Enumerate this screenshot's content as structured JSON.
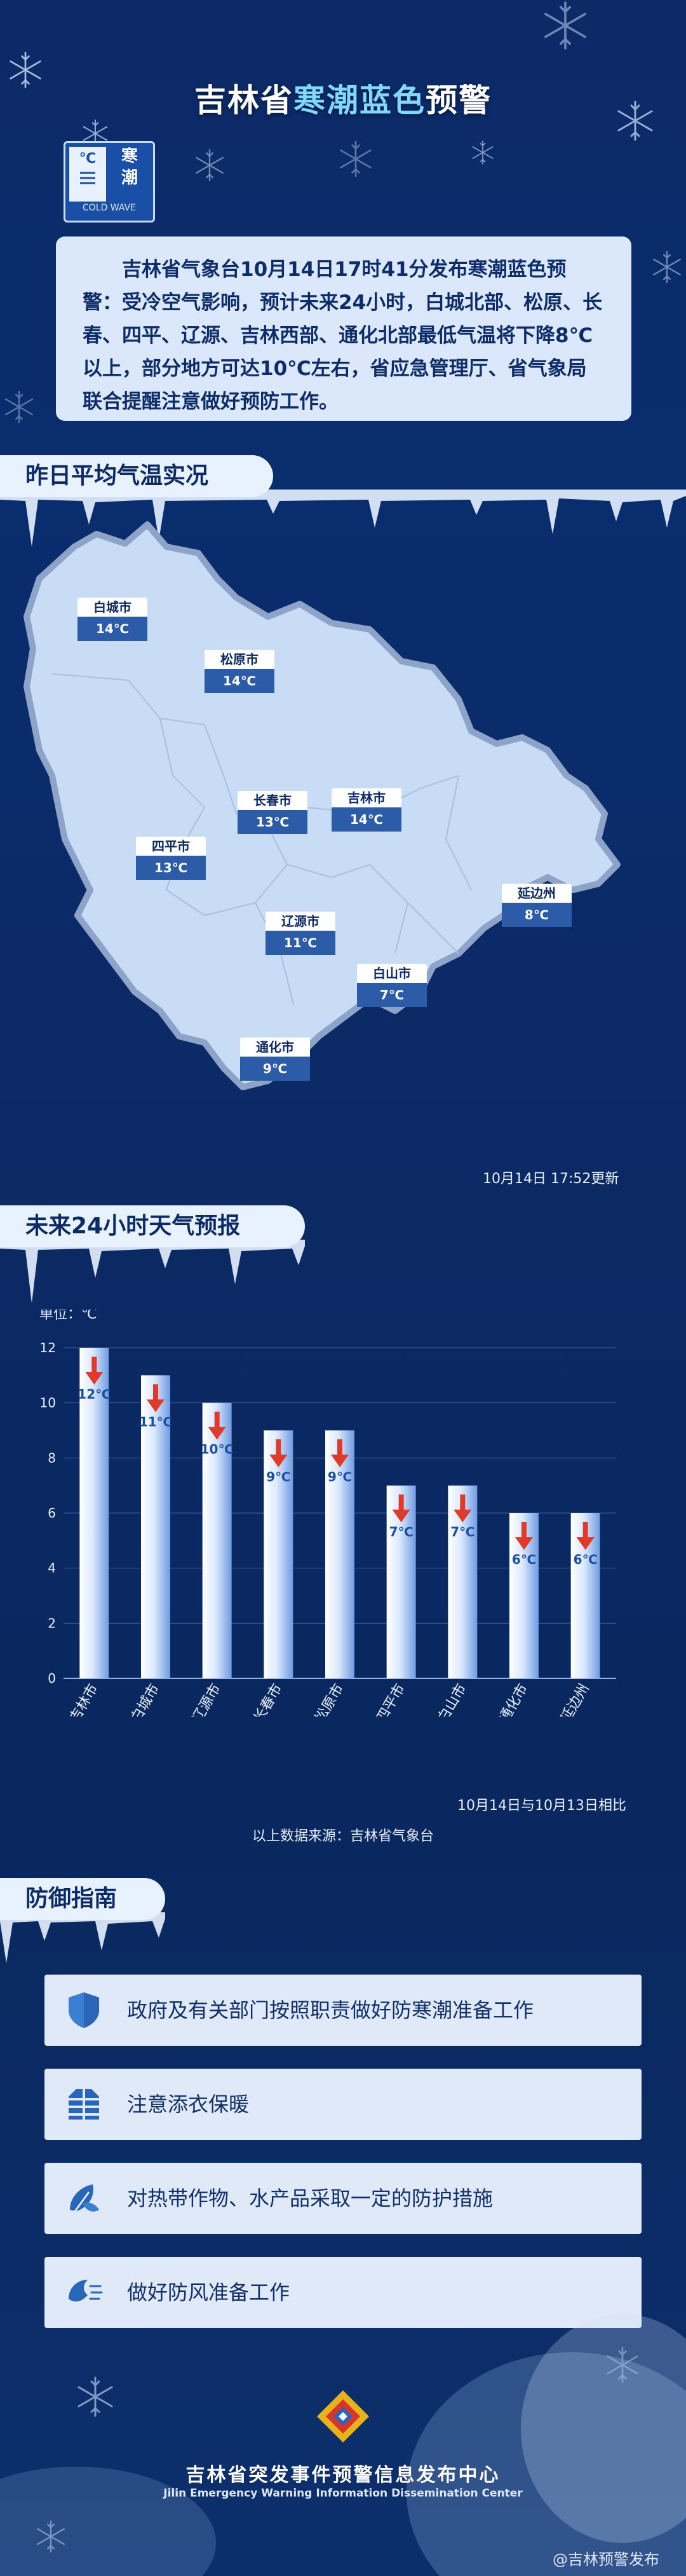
{
  "header": {
    "title_pre": "吉林省",
    "title_hl": "寒潮蓝色",
    "title_post": "预警"
  },
  "badge": {
    "symbol": "℃",
    "cn": "寒潮",
    "en": "COLD WAVE"
  },
  "notice": "吉林省气象台10月14日17时41分发布寒潮蓝色预警：受冷空气影响，预计未来24小时，白城北部、松原、长春、四平、辽源、吉林西部、通化北部最低气温将下降8℃以上，部分地方可达10℃左右，省应急管理厅、省气象局联合提醒注意做好预防工作。",
  "section_map": "昨日平均气温实况",
  "cities": [
    {
      "name": "白城市",
      "temp": "14℃"
    },
    {
      "name": "松原市",
      "temp": "14℃"
    },
    {
      "name": "长春市",
      "temp": "13℃"
    },
    {
      "name": "吉林市",
      "temp": "14℃"
    },
    {
      "name": "四平市",
      "temp": "13℃"
    },
    {
      "name": "延边州",
      "temp": "8℃"
    },
    {
      "name": "辽源市",
      "temp": "11℃"
    },
    {
      "name": "白山市",
      "temp": "7℃"
    },
    {
      "name": "通化市",
      "temp": "9℃"
    }
  ],
  "update_time": "10月14日  17:52更新",
  "section_chart": "未来24小时天气预报",
  "chart_data": {
    "type": "bar",
    "ylabel": "单位：℃",
    "ylim": [
      0,
      12
    ],
    "yticks": [
      "0",
      "2",
      "4",
      "6",
      "8",
      "10",
      "12"
    ],
    "categories": [
      "吉林市",
      "白城市",
      "辽源市",
      "长春市",
      "松原市",
      "四平市",
      "白山市",
      "通化市",
      "延边州"
    ],
    "values": [
      12,
      11,
      10,
      9,
      9,
      7,
      7,
      6,
      6
    ],
    "labels": [
      "12℃",
      "11℃",
      "10℃",
      "9℃",
      "9℃",
      "7℃",
      "7℃",
      "6℃",
      "6℃"
    ],
    "grid": true,
    "legend": "none"
  },
  "compare_note": "10月14日与10月13日相比",
  "source_note": "以上数据来源：吉林省气象台",
  "section_guide": "防御指南",
  "guides": [
    {
      "text": "政府及有关部门按照职责做好防寒潮准备工作",
      "icon": "shield-icon"
    },
    {
      "text": "注意添衣保暖",
      "icon": "coat-icon"
    },
    {
      "text": "对热带作物、水产品采取一定的防护措施",
      "icon": "plant-protection-icon"
    },
    {
      "text": "做好防风准备工作",
      "icon": "wind-icon"
    }
  ],
  "footer": {
    "name": "吉林省突发事件预警信息发布中心",
    "en": "Jilin Emergency Warning Information Dissemination Center"
  },
  "watermark": "@吉林预警发布",
  "colors": {
    "background": "#0b2a66",
    "accent": "#7fd8ff",
    "panel": "#dbe8fb",
    "map_fill": "#c9dcf5",
    "arrow": "#e03a2a"
  }
}
